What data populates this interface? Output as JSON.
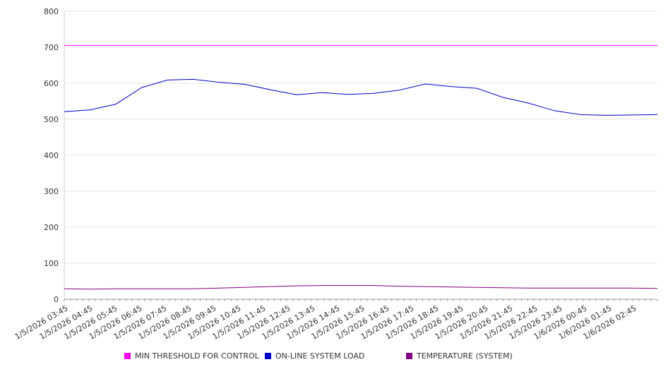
{
  "chart_data": {
    "type": "line",
    "title": "",
    "xlabel": "",
    "ylabel": "",
    "ylim": [
      0,
      800
    ],
    "yticks": [
      0,
      100,
      200,
      300,
      400,
      500,
      600,
      700,
      800
    ],
    "grid": true,
    "legend_position": "bottom",
    "x": [
      "1/5/2026 03:45",
      "1/5/2026 04:45",
      "1/5/2026 05:45",
      "1/5/2026 06:45",
      "1/5/2026 07:45",
      "1/5/2026 08:45",
      "1/5/2026 09:45",
      "1/5/2026 10:45",
      "1/5/2026 11:45",
      "1/5/2026 12:45",
      "1/5/2026 13:45",
      "1/5/2026 14:45",
      "1/5/2026 15:45",
      "1/5/2026 16:45",
      "1/5/2026 17:45",
      "1/5/2026 18:45",
      "1/5/2026 19:45",
      "1/5/2026 20:45",
      "1/5/2026 21:45",
      "1/5/2026 22:45",
      "1/5/2026 23:45",
      "1/6/2026 00:45",
      "1/6/2026 01:45",
      "1/6/2026 02:45"
    ],
    "series": [
      {
        "name": "MIN THRESHOLD FOR CONTROL",
        "color": "#ff00ff",
        "values": [
          705,
          705,
          705,
          705,
          705,
          705,
          705,
          705,
          705,
          705,
          705,
          705,
          705,
          705,
          705,
          705,
          705,
          705,
          705,
          705,
          705,
          705,
          705,
          705
        ]
      },
      {
        "name": "ON-LINE SYSTEM LOAD",
        "color": "#0000cc",
        "values": [
          521,
          526,
          542,
          588,
          609,
          611,
          603,
          597,
          582,
          568,
          574,
          569,
          572,
          581,
          598,
          591,
          586,
          561,
          545,
          524,
          513,
          511,
          512,
          513
        ]
      },
      {
        "name": "TEMPERATURE (SYSTEM)",
        "color": "#800080",
        "values": [
          29,
          28,
          29,
          29,
          29,
          29,
          31,
          33,
          35,
          37,
          38,
          38,
          38,
          36,
          35,
          34,
          33,
          32,
          31,
          31,
          31,
          31,
          31,
          30
        ]
      }
    ]
  }
}
